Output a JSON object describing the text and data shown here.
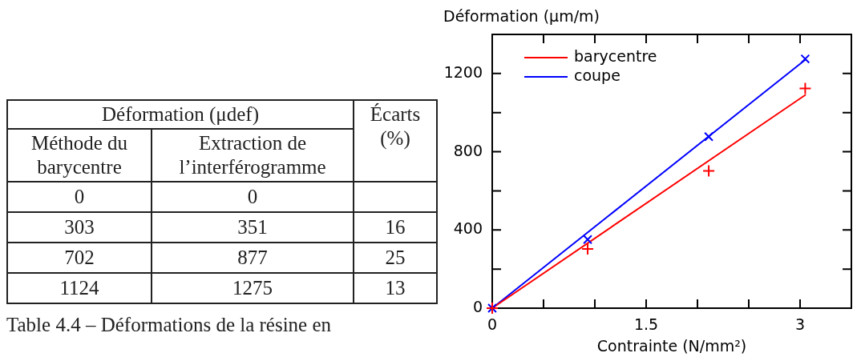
{
  "chart_data": [
    {
      "type": "other",
      "title": "Déformation (μdef)",
      "annotations": [
        "Méthode du barycentre",
        "Extraction de l’interférogramme",
        "Écarts (%)",
        "0",
        "0",
        "303",
        "351",
        "16",
        "702",
        "877",
        "25",
        "1124",
        "1275",
        "13",
        "Table 4.4 – Déformations de la résine en"
      ]
    },
    {
      "type": "scatter",
      "xlabel": "Contrainte (N/mm²)",
      "ylabel": "Déformation (µm/m)",
      "xlim": [
        0,
        3.5
      ],
      "ylim": [
        0,
        1400
      ],
      "xticks": [
        0,
        {
          "value": 0.5,
          "label": null
        },
        {
          "value": 1,
          "label": null
        },
        1.5,
        {
          "value": 2,
          "label": null
        },
        {
          "value": 2.5,
          "label": null
        },
        3,
        {
          "value": 3.5,
          "label": null
        }
      ],
      "yticks": [
        0,
        {
          "value": 200,
          "label": null
        },
        400,
        {
          "value": 600,
          "label": null
        },
        800,
        {
          "value": 1000,
          "label": null
        },
        1200,
        {
          "value": 1400,
          "label": null
        }
      ],
      "legend": "top left",
      "series": [
        {
          "type": "scatter",
          "color": "#ff0000",
          "marker": "cross",
          "x": [
            0,
            0.93,
            2.11,
            3.05
          ],
          "values": [
            0,
            303,
            702,
            1124
          ]
        },
        {
          "type": "scatter",
          "color": "#0000ff",
          "marker": "x",
          "x": [
            0,
            0.93,
            2.11,
            3.05
          ],
          "values": [
            0,
            351,
            877,
            1275
          ]
        },
        {
          "type": "line",
          "name": "barycentre",
          "color": "#ff0000",
          "marker": "none",
          "x": [
            0,
            3.05
          ],
          "values": [
            0,
            1090
          ]
        },
        {
          "type": "line",
          "name": "coupe",
          "color": "#0000ff",
          "marker": "none",
          "x": [
            0,
            3.05
          ],
          "values": [
            0,
            1270
          ]
        }
      ]
    }
  ]
}
